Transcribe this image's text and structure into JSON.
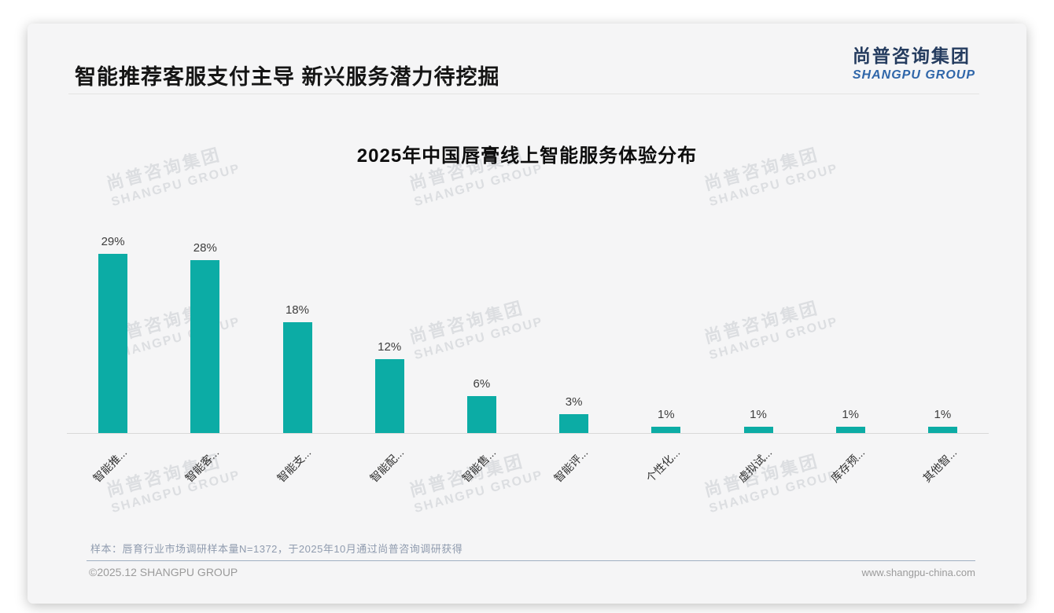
{
  "slide": {
    "header": {
      "title": "智能推荐客服支付主导 新兴服务潜力待挖掘",
      "logo_cn": "尚普咨询集团",
      "logo_en": "SHANGPU GROUP"
    },
    "watermark": {
      "line1": "尚普咨询集团",
      "line2": "SHANGPU GROUP"
    },
    "footer": {
      "sample_note": "样本：唇育行业市场调研样本量N=1372，于2025年10月通过尚普咨询调研获得",
      "copyright": "©2025.12 SHANGPU GROUP",
      "website": "www.shangpu-china.com"
    },
    "colors": {
      "bar": "#0caca5",
      "logo_cn_text": "#253c5f",
      "logo_en_text": "#2f66a9",
      "watermark_text": "#dcdee1",
      "note_text": "#8f9bae"
    }
  },
  "chart_data": {
    "type": "bar",
    "title": "2025年中国唇膏线上智能服务体验分布",
    "categories": [
      "智能推...",
      "智能客...",
      "智能支...",
      "智能配...",
      "智能售...",
      "智能评...",
      "个性化...",
      "虚拟试...",
      "库存预...",
      "其他智..."
    ],
    "values": [
      29,
      28,
      18,
      12,
      6,
      3,
      1,
      1,
      1,
      1
    ],
    "value_labels": [
      "29%",
      "28%",
      "18%",
      "12%",
      "6%",
      "3%",
      "1%",
      "1%",
      "1%",
      "1%"
    ],
    "unit": "%",
    "xlabel": "",
    "ylabel": "",
    "ylim": [
      0,
      30
    ],
    "grid": false,
    "legend": "none",
    "x_label_rotation_deg": 45,
    "bar_color": "#0caca5"
  }
}
